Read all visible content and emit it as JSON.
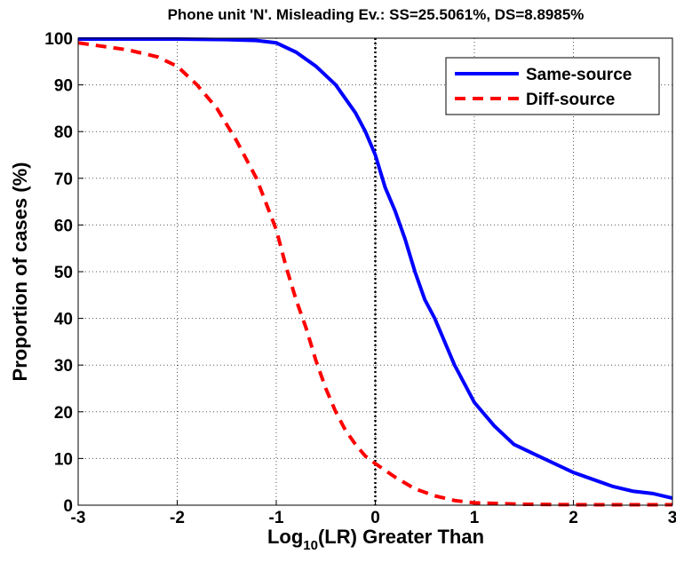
{
  "chart_data": {
    "type": "line",
    "title": "Phone unit 'N'. Misleading Ev.: SS=25.5061%, DS=8.8985%",
    "x_label": [
      "Log",
      "10",
      "(LR) Greater Than"
    ],
    "y_label": "Proportion of cases (%)",
    "xlim": [
      -3,
      3
    ],
    "ylim": [
      0,
      100
    ],
    "xticks": [
      -3,
      -2,
      -1,
      0,
      1,
      2,
      3
    ],
    "yticks": [
      0,
      10,
      20,
      30,
      40,
      50,
      60,
      70,
      80,
      90,
      100
    ],
    "grid": true,
    "reference_line_x": 0,
    "legend": "upper right",
    "series": [
      {
        "name": "Same-source",
        "color": "#0000ff",
        "dash": "solid",
        "x": [
          -3,
          -2,
          -1.5,
          -1.2,
          -1,
          -0.8,
          -0.6,
          -0.4,
          -0.2,
          -0.1,
          0,
          0.1,
          0.2,
          0.3,
          0.4,
          0.5,
          0.6,
          0.7,
          0.8,
          0.9,
          1.0,
          1.2,
          1.4,
          1.6,
          1.8,
          2.0,
          2.2,
          2.4,
          2.6,
          2.8,
          3.0
        ],
        "values": [
          99.8,
          99.8,
          99.7,
          99.5,
          99,
          97,
          94,
          90,
          84,
          80,
          75,
          68,
          63,
          57,
          50,
          44,
          40,
          35,
          30,
          26,
          22,
          17,
          13,
          11,
          9,
          7,
          5.5,
          4,
          3,
          2.5,
          1.5
        ]
      },
      {
        "name": "Diff-source",
        "color": "#ff0000",
        "dash": "dashed",
        "x": [
          -3,
          -2.5,
          -2.2,
          -2,
          -1.8,
          -1.6,
          -1.4,
          -1.2,
          -1.0,
          -0.9,
          -0.8,
          -0.7,
          -0.6,
          -0.5,
          -0.4,
          -0.3,
          -0.2,
          -0.1,
          0,
          0.2,
          0.4,
          0.6,
          0.8,
          1.0,
          1.5,
          2,
          3
        ],
        "values": [
          99,
          97.5,
          96,
          94,
          90,
          85,
          78,
          70,
          59,
          51,
          44,
          38,
          31,
          25,
          20,
          16,
          13,
          10.5,
          8.9,
          6,
          3.5,
          2,
          1,
          0.5,
          0.2,
          0.1,
          0.1
        ]
      }
    ]
  }
}
